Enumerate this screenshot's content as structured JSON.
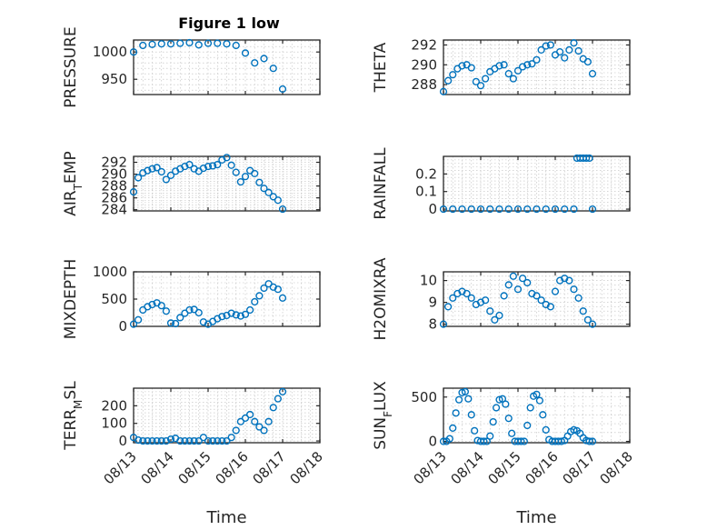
{
  "figure": {
    "title": "Figure 1 low"
  },
  "colors": {
    "marker": "#0072BD",
    "axis": "#262626",
    "grid": "#bdbdbd"
  },
  "chart_data": [
    {
      "type": "scatter",
      "ylabel": "PRESSURE",
      "xlim": [
        "08/13",
        "08/18"
      ],
      "ylim": [
        922,
        1022
      ],
      "yticks": [
        950,
        1000
      ],
      "xticklabels": [],
      "x": [
        "08/13 00:00",
        "08/13 06:00",
        "08/13 12:00",
        "08/13 18:00",
        "08/14 00:00",
        "08/14 06:00",
        "08/14 12:00",
        "08/14 18:00",
        "08/15 00:00",
        "08/15 06:00",
        "08/15 12:00",
        "08/15 18:00",
        "08/16 00:00",
        "08/16 06:00",
        "08/16 12:00",
        "08/16 18:00",
        "08/17 00:00"
      ],
      "y": [
        1000,
        1012,
        1014,
        1015,
        1015,
        1016,
        1017,
        1013,
        1016,
        1016,
        1015,
        1012,
        998,
        980,
        988,
        970,
        932
      ]
    },
    {
      "type": "scatter",
      "ylabel": "THETA",
      "xlim": [
        "08/13",
        "08/18"
      ],
      "ylim": [
        287,
        292.5
      ],
      "yticks": [
        288,
        290,
        292
      ],
      "xticklabels": [],
      "x": [
        "08/13 00:00",
        "08/13 03:00",
        "08/13 06:00",
        "08/13 09:00",
        "08/13 12:00",
        "08/13 15:00",
        "08/13 18:00",
        "08/13 21:00",
        "08/14 00:00",
        "08/14 03:00",
        "08/14 06:00",
        "08/14 09:00",
        "08/14 12:00",
        "08/14 15:00",
        "08/14 18:00",
        "08/14 21:00",
        "08/15 00:00",
        "08/15 03:00",
        "08/15 06:00",
        "08/15 09:00",
        "08/15 12:00",
        "08/15 15:00",
        "08/15 18:00",
        "08/15 21:00",
        "08/16 00:00",
        "08/16 03:00",
        "08/16 06:00",
        "08/16 09:00",
        "08/16 12:00",
        "08/16 15:00",
        "08/16 18:00",
        "08/16 21:00",
        "08/17 00:00"
      ],
      "y": [
        287.3,
        288.4,
        289.0,
        289.6,
        289.9,
        290.0,
        289.7,
        288.3,
        287.9,
        288.6,
        289.3,
        289.6,
        289.9,
        290.0,
        289.1,
        288.6,
        289.4,
        289.8,
        290.0,
        290.1,
        290.5,
        291.5,
        291.9,
        292.0,
        291.0,
        291.3,
        290.7,
        291.5,
        292.2,
        291.4,
        290.6,
        290.3,
        289.1
      ]
    },
    {
      "type": "scatter",
      "ylabel": "AIR_TEMP",
      "ylabel_main": "AIR",
      "ylabel_sub": "T",
      "ylabel_tail": "EMP",
      "xlim": [
        "08/13",
        "08/18"
      ],
      "ylim": [
        283.8,
        293
      ],
      "yticks": [
        284,
        286,
        288,
        290,
        292
      ],
      "xticklabels": [],
      "x": [
        "08/13 00:00",
        "08/13 03:00",
        "08/13 06:00",
        "08/13 09:00",
        "08/13 12:00",
        "08/13 15:00",
        "08/13 18:00",
        "08/13 21:00",
        "08/14 00:00",
        "08/14 03:00",
        "08/14 06:00",
        "08/14 09:00",
        "08/14 12:00",
        "08/14 15:00",
        "08/14 18:00",
        "08/14 21:00",
        "08/15 00:00",
        "08/15 03:00",
        "08/15 06:00",
        "08/15 09:00",
        "08/15 12:00",
        "08/15 15:00",
        "08/15 18:00",
        "08/15 21:00",
        "08/16 00:00",
        "08/16 03:00",
        "08/16 06:00",
        "08/16 09:00",
        "08/16 12:00",
        "08/16 15:00",
        "08/16 18:00",
        "08/16 21:00",
        "08/17 00:00"
      ],
      "y": [
        287.0,
        289.4,
        290.2,
        290.6,
        290.9,
        291.1,
        290.4,
        289.1,
        289.8,
        290.5,
        290.9,
        291.3,
        291.6,
        290.9,
        290.5,
        291.0,
        291.3,
        291.4,
        291.6,
        292.4,
        292.8,
        291.5,
        290.3,
        288.7,
        289.6,
        290.6,
        290.1,
        288.6,
        287.6,
        286.9,
        286.2,
        285.6,
        284.1
      ]
    },
    {
      "type": "scatter",
      "ylabel": "RAINFALL",
      "xlim": [
        "08/13",
        "08/18"
      ],
      "ylim": [
        -0.01,
        0.3
      ],
      "yticks": [
        0,
        0.1,
        0.2
      ],
      "yticklabels": [
        "0",
        "0.1",
        "0.2"
      ],
      "xticklabels": [],
      "x": [
        "08/13 00:00",
        "08/13 06:00",
        "08/13 12:00",
        "08/13 18:00",
        "08/14 00:00",
        "08/14 06:00",
        "08/14 12:00",
        "08/14 18:00",
        "08/15 00:00",
        "08/15 06:00",
        "08/15 12:00",
        "08/15 18:00",
        "08/16 00:00",
        "08/16 06:00",
        "08/16 12:00",
        "08/16 14:00",
        "08/16 16:00",
        "08/16 18:00",
        "08/16 20:00",
        "08/16 22:00",
        "08/17 00:00"
      ],
      "y": [
        0,
        0,
        0,
        0,
        0,
        0,
        0,
        0,
        0,
        0,
        0,
        0,
        0,
        0,
        0,
        0.29,
        0.29,
        0.29,
        0.29,
        0.29,
        0
      ]
    },
    {
      "type": "scatter",
      "ylabel": "MIXDEPTH",
      "xlim": [
        "08/13",
        "08/18"
      ],
      "ylim": [
        0,
        1000
      ],
      "yticks": [
        0,
        500,
        1000
      ],
      "xticklabels": [],
      "x": [
        "08/13 00:00",
        "08/13 03:00",
        "08/13 06:00",
        "08/13 09:00",
        "08/13 12:00",
        "08/13 15:00",
        "08/13 18:00",
        "08/13 21:00",
        "08/14 00:00",
        "08/14 03:00",
        "08/14 06:00",
        "08/14 09:00",
        "08/14 12:00",
        "08/14 15:00",
        "08/14 18:00",
        "08/14 21:00",
        "08/15 00:00",
        "08/15 03:00",
        "08/15 06:00",
        "08/15 09:00",
        "08/15 12:00",
        "08/15 15:00",
        "08/15 18:00",
        "08/15 21:00",
        "08/16 00:00",
        "08/16 03:00",
        "08/16 06:00",
        "08/16 09:00",
        "08/16 12:00",
        "08/16 15:00",
        "08/16 18:00",
        "08/16 21:00",
        "08/17 00:00"
      ],
      "y": [
        40,
        120,
        300,
        360,
        400,
        430,
        380,
        280,
        60,
        50,
        160,
        240,
        300,
        310,
        250,
        80,
        40,
        90,
        140,
        180,
        200,
        240,
        210,
        190,
        220,
        300,
        450,
        560,
        700,
        780,
        720,
        680,
        520
      ]
    },
    {
      "type": "scatter",
      "ylabel": "H2OMIXRA",
      "xlim": [
        "08/13",
        "08/18"
      ],
      "ylim": [
        7.9,
        10.4
      ],
      "yticks": [
        8,
        9,
        10
      ],
      "xticklabels": [],
      "x": [
        "08/13 00:00",
        "08/13 03:00",
        "08/13 06:00",
        "08/13 09:00",
        "08/13 12:00",
        "08/13 15:00",
        "08/13 18:00",
        "08/13 21:00",
        "08/14 00:00",
        "08/14 03:00",
        "08/14 06:00",
        "08/14 09:00",
        "08/14 12:00",
        "08/14 15:00",
        "08/14 18:00",
        "08/14 21:00",
        "08/15 00:00",
        "08/15 03:00",
        "08/15 06:00",
        "08/15 09:00",
        "08/15 12:00",
        "08/15 15:00",
        "08/15 18:00",
        "08/15 21:00",
        "08/16 00:00",
        "08/16 03:00",
        "08/16 06:00",
        "08/16 09:00",
        "08/16 12:00",
        "08/16 15:00",
        "08/16 18:00",
        "08/16 21:00",
        "08/17 00:00"
      ],
      "y": [
        8.0,
        8.8,
        9.2,
        9.4,
        9.5,
        9.4,
        9.2,
        8.9,
        9.0,
        9.1,
        8.6,
        8.2,
        8.4,
        9.3,
        9.8,
        10.2,
        9.6,
        10.1,
        9.9,
        9.4,
        9.3,
        9.1,
        8.9,
        8.8,
        9.5,
        10.0,
        10.1,
        10.0,
        9.6,
        9.2,
        8.6,
        8.2,
        8.0
      ]
    },
    {
      "type": "scatter",
      "ylabel": "TERR_MSL",
      "ylabel_main": "TERR",
      "ylabel_sub": "M",
      "ylabel_tail": "SL",
      "xlim": [
        "08/13",
        "08/18"
      ],
      "ylim": [
        -10,
        300
      ],
      "yticks": [
        0,
        100,
        200
      ],
      "xticks": [
        "08/13",
        "08/14",
        "08/15",
        "08/16",
        "08/17",
        "08/18"
      ],
      "xticklabels": [
        "08/13",
        "08/14",
        "08/15",
        "08/16",
        "08/17",
        "08/18"
      ],
      "xlabel": "Time",
      "x": [
        "08/13 00:00",
        "08/13 03:00",
        "08/13 06:00",
        "08/13 09:00",
        "08/13 12:00",
        "08/13 15:00",
        "08/13 18:00",
        "08/13 21:00",
        "08/14 00:00",
        "08/14 03:00",
        "08/14 06:00",
        "08/14 09:00",
        "08/14 12:00",
        "08/14 15:00",
        "08/14 18:00",
        "08/14 21:00",
        "08/15 00:00",
        "08/15 03:00",
        "08/15 06:00",
        "08/15 09:00",
        "08/15 12:00",
        "08/15 15:00",
        "08/15 18:00",
        "08/15 21:00",
        "08/16 00:00",
        "08/16 03:00",
        "08/16 06:00",
        "08/16 09:00",
        "08/16 12:00",
        "08/16 15:00",
        "08/16 18:00",
        "08/16 21:00",
        "08/17 00:00"
      ],
      "y": [
        20,
        5,
        0,
        0,
        0,
        0,
        0,
        0,
        10,
        15,
        0,
        0,
        0,
        0,
        0,
        20,
        0,
        0,
        0,
        0,
        0,
        20,
        60,
        110,
        130,
        150,
        110,
        80,
        60,
        110,
        190,
        240,
        280
      ]
    },
    {
      "type": "scatter",
      "ylabel": "SUN_FLUX",
      "ylabel_main": "SUN",
      "ylabel_sub": "F",
      "ylabel_tail": "LUX",
      "xlim": [
        "08/13",
        "08/18"
      ],
      "ylim": [
        -15,
        600
      ],
      "yticks": [
        0,
        500
      ],
      "xticks": [
        "08/13",
        "08/14",
        "08/15",
        "08/16",
        "08/17",
        "08/18"
      ],
      "xticklabels": [
        "08/13",
        "08/14",
        "08/15",
        "08/16",
        "08/17",
        "08/18"
      ],
      "xlabel": "Time",
      "x": [
        "08/13 00:00",
        "08/13 02:00",
        "08/13 04:00",
        "08/13 06:00",
        "08/13 08:00",
        "08/13 10:00",
        "08/13 12:00",
        "08/13 14:00",
        "08/13 16:00",
        "08/13 18:00",
        "08/13 20:00",
        "08/13 22:00",
        "08/14 00:00",
        "08/14 02:00",
        "08/14 04:00",
        "08/14 06:00",
        "08/14 08:00",
        "08/14 10:00",
        "08/14 12:00",
        "08/14 14:00",
        "08/14 16:00",
        "08/14 18:00",
        "08/14 20:00",
        "08/14 22:00",
        "08/15 00:00",
        "08/15 02:00",
        "08/15 04:00",
        "08/15 06:00",
        "08/15 08:00",
        "08/15 10:00",
        "08/15 12:00",
        "08/15 14:00",
        "08/15 16:00",
        "08/15 18:00",
        "08/15 20:00",
        "08/15 22:00",
        "08/16 00:00",
        "08/16 02:00",
        "08/16 04:00",
        "08/16 06:00",
        "08/16 08:00",
        "08/16 10:00",
        "08/16 12:00",
        "08/16 14:00",
        "08/16 16:00",
        "08/16 18:00",
        "08/16 20:00",
        "08/16 22:00",
        "08/17 00:00"
      ],
      "y": [
        0,
        0,
        30,
        150,
        320,
        470,
        550,
        560,
        480,
        300,
        120,
        10,
        0,
        0,
        0,
        60,
        220,
        380,
        470,
        480,
        420,
        260,
        90,
        0,
        0,
        0,
        0,
        180,
        380,
        510,
        530,
        460,
        300,
        130,
        20,
        0,
        0,
        0,
        0,
        10,
        60,
        110,
        130,
        120,
        90,
        40,
        10,
        0,
        0
      ]
    }
  ]
}
